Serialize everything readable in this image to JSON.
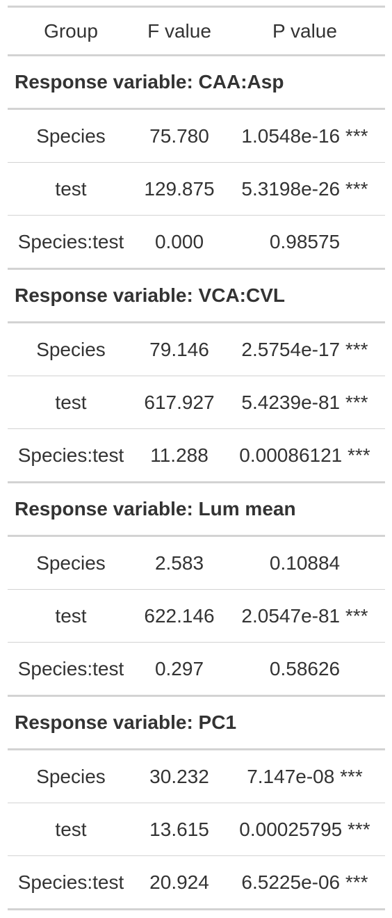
{
  "table": {
    "columns": [
      "Group",
      "F value",
      "P value"
    ],
    "groups": [
      {
        "title": "Response variable: CAA:Asp",
        "rows": [
          {
            "group": "Species",
            "f": "75.780",
            "p": "1.0548e-16 ***"
          },
          {
            "group": "test",
            "f": "129.875",
            "p": "5.3198e-26 ***"
          },
          {
            "group": "Species:test",
            "f": "0.000",
            "p": "0.98575"
          }
        ]
      },
      {
        "title": "Response variable: VCA:CVL",
        "rows": [
          {
            "group": "Species",
            "f": "79.146",
            "p": "2.5754e-17 ***"
          },
          {
            "group": "test",
            "f": "617.927",
            "p": "5.4239e-81 ***"
          },
          {
            "group": "Species:test",
            "f": "11.288",
            "p": "0.00086121 ***"
          }
        ]
      },
      {
        "title": "Response variable: Lum mean",
        "rows": [
          {
            "group": "Species",
            "f": "2.583",
            "p": "0.10884"
          },
          {
            "group": "test",
            "f": "622.146",
            "p": "2.0547e-81 ***"
          },
          {
            "group": "Species:test",
            "f": "0.297",
            "p": "0.58626"
          }
        ]
      },
      {
        "title": "Response variable: PC1",
        "rows": [
          {
            "group": "Species",
            "f": "30.232",
            "p": "7.147e-08 ***"
          },
          {
            "group": "test",
            "f": "13.615",
            "p": "0.00025795 ***"
          },
          {
            "group": "Species:test",
            "f": "20.924",
            "p": "6.5225e-06 ***"
          }
        ]
      }
    ]
  }
}
